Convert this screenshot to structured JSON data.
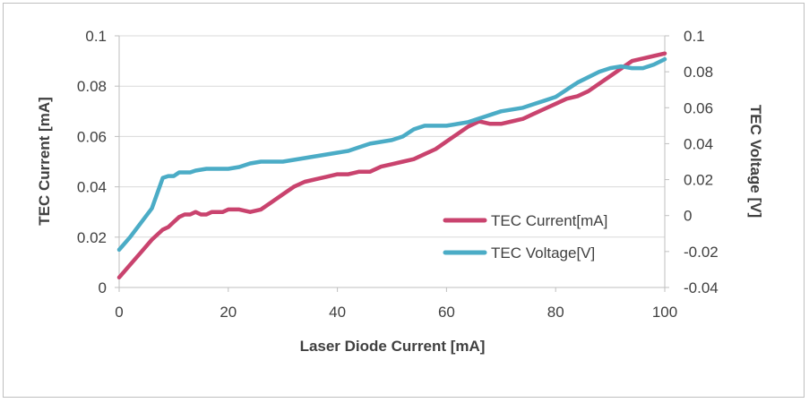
{
  "chart_data": {
    "type": "line",
    "xlabel": "Laser Diode Current [mA]",
    "ylabel_left": "TEC Current [mA]",
    "ylabel_right": "TEC Voltage [V]",
    "xlim": [
      0,
      100
    ],
    "ylim_left": [
      0,
      0.1
    ],
    "ylim_right": [
      -0.04,
      0.1
    ],
    "x_ticks": [
      "0",
      "20",
      "40",
      "60",
      "80",
      "100"
    ],
    "y_left_ticks": [
      "0",
      "0.02",
      "0.04",
      "0.06",
      "0.08",
      "0.1"
    ],
    "y_right_ticks": [
      "-0.04",
      "-0.02",
      "0",
      "0.02",
      "0.04",
      "0.06",
      "0.08",
      "0.1"
    ],
    "grid": "horizontal",
    "legend_position": "lower-right",
    "series": [
      {
        "name": "TEC Current[mA]",
        "axis": "left",
        "color": "#c9436e",
        "points": [
          [
            0,
            0.004
          ],
          [
            2,
            0.009
          ],
          [
            4,
            0.014
          ],
          [
            6,
            0.019
          ],
          [
            8,
            0.023
          ],
          [
            9,
            0.024
          ],
          [
            10,
            0.026
          ],
          [
            11,
            0.028
          ],
          [
            12,
            0.029
          ],
          [
            13,
            0.029
          ],
          [
            14,
            0.03
          ],
          [
            15,
            0.029
          ],
          [
            16,
            0.029
          ],
          [
            17,
            0.03
          ],
          [
            19,
            0.03
          ],
          [
            20,
            0.031
          ],
          [
            22,
            0.031
          ],
          [
            24,
            0.03
          ],
          [
            26,
            0.031
          ],
          [
            28,
            0.034
          ],
          [
            30,
            0.037
          ],
          [
            32,
            0.04
          ],
          [
            34,
            0.042
          ],
          [
            36,
            0.043
          ],
          [
            38,
            0.044
          ],
          [
            40,
            0.045
          ],
          [
            42,
            0.045
          ],
          [
            44,
            0.046
          ],
          [
            46,
            0.046
          ],
          [
            48,
            0.048
          ],
          [
            50,
            0.049
          ],
          [
            52,
            0.05
          ],
          [
            54,
            0.051
          ],
          [
            56,
            0.053
          ],
          [
            58,
            0.055
          ],
          [
            60,
            0.058
          ],
          [
            62,
            0.061
          ],
          [
            64,
            0.064
          ],
          [
            66,
            0.066
          ],
          [
            68,
            0.065
          ],
          [
            70,
            0.065
          ],
          [
            72,
            0.066
          ],
          [
            74,
            0.067
          ],
          [
            76,
            0.069
          ],
          [
            78,
            0.071
          ],
          [
            80,
            0.073
          ],
          [
            82,
            0.075
          ],
          [
            84,
            0.076
          ],
          [
            86,
            0.078
          ],
          [
            88,
            0.081
          ],
          [
            90,
            0.084
          ],
          [
            92,
            0.087
          ],
          [
            94,
            0.09
          ],
          [
            96,
            0.091
          ],
          [
            98,
            0.092
          ],
          [
            100,
            0.093
          ]
        ]
      },
      {
        "name": "TEC Voltage[V]",
        "axis": "right",
        "color": "#4bacc6",
        "points": [
          [
            0,
            -0.019
          ],
          [
            2,
            -0.012
          ],
          [
            4,
            -0.004
          ],
          [
            6,
            0.004
          ],
          [
            8,
            0.021
          ],
          [
            9,
            0.022
          ],
          [
            10,
            0.022
          ],
          [
            11,
            0.024
          ],
          [
            12,
            0.024
          ],
          [
            13,
            0.024
          ],
          [
            14,
            0.025
          ],
          [
            16,
            0.026
          ],
          [
            18,
            0.026
          ],
          [
            20,
            0.026
          ],
          [
            22,
            0.027
          ],
          [
            24,
            0.029
          ],
          [
            26,
            0.03
          ],
          [
            28,
            0.03
          ],
          [
            30,
            0.03
          ],
          [
            32,
            0.031
          ],
          [
            34,
            0.032
          ],
          [
            36,
            0.033
          ],
          [
            38,
            0.034
          ],
          [
            40,
            0.035
          ],
          [
            42,
            0.036
          ],
          [
            44,
            0.038
          ],
          [
            46,
            0.04
          ],
          [
            48,
            0.041
          ],
          [
            50,
            0.042
          ],
          [
            52,
            0.044
          ],
          [
            54,
            0.048
          ],
          [
            56,
            0.05
          ],
          [
            58,
            0.05
          ],
          [
            60,
            0.05
          ],
          [
            62,
            0.051
          ],
          [
            64,
            0.052
          ],
          [
            66,
            0.054
          ],
          [
            68,
            0.056
          ],
          [
            70,
            0.058
          ],
          [
            72,
            0.059
          ],
          [
            74,
            0.06
          ],
          [
            76,
            0.062
          ],
          [
            78,
            0.064
          ],
          [
            80,
            0.066
          ],
          [
            82,
            0.07
          ],
          [
            84,
            0.074
          ],
          [
            86,
            0.077
          ],
          [
            88,
            0.08
          ],
          [
            90,
            0.082
          ],
          [
            92,
            0.083
          ],
          [
            94,
            0.082
          ],
          [
            96,
            0.082
          ],
          [
            98,
            0.084
          ],
          [
            100,
            0.087
          ]
        ]
      }
    ]
  }
}
